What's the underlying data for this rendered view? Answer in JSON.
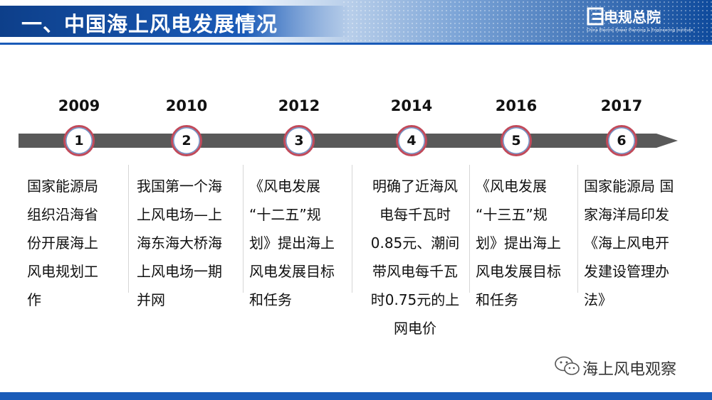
{
  "header": {
    "title": "一、中国海上风电发展情况",
    "logo_text": "电规总院",
    "logo_subtitle": "China Electric Power Planning & Engineering Institute"
  },
  "timeline": [
    {
      "year": "2009",
      "number": "1",
      "lines": [
        "国家能源局",
        "组织沿海省",
        "份开展海上",
        "风电规划工",
        "作"
      ]
    },
    {
      "year": "2010",
      "number": "2",
      "lines": [
        "我国第一个海",
        "上风电场—上",
        "海东海大桥海",
        "上风电场一期",
        "并网"
      ]
    },
    {
      "year": "2012",
      "number": "3",
      "lines": [
        "《风电发展",
        "“十二五”规",
        "划》提出海上",
        "风电发展目标",
        "和任务"
      ]
    },
    {
      "year": "2014",
      "number": "4",
      "lines": [
        "明确了近海风",
        "电每千瓦时",
        "0.85元、潮间",
        "带风电每千瓦",
        "时0.75元的上",
        "网电价"
      ]
    },
    {
      "year": "2016",
      "number": "5",
      "lines": [
        "《风电发展",
        "“十三五”规",
        "划》提出海上",
        "风电发展目标",
        "和任务"
      ]
    },
    {
      "year": "2017",
      "number": "6",
      "lines": [
        "国家能源局 国",
        "家海洋局印发",
        "《海上风电开",
        "发建设管理办",
        "法》"
      ]
    }
  ],
  "watermark": {
    "text": "海上风电观察",
    "icon": "wechat-icon"
  },
  "colors": {
    "brand_blue": "#1a5bb8",
    "arrow_gray": "#595959",
    "node_ring": "#c14a5a"
  }
}
